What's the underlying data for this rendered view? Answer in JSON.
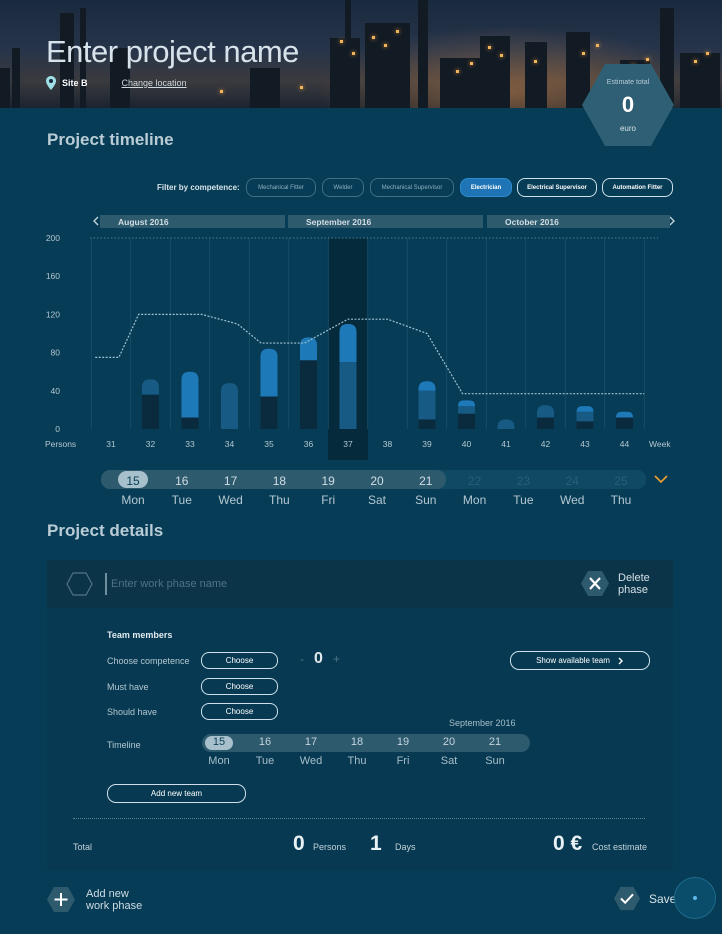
{
  "header": {
    "project_name_placeholder": "Enter project name",
    "site": "Site B",
    "change_location": "Change location",
    "estimate": {
      "label": "Estimate total",
      "value": "0",
      "unit": "euro"
    }
  },
  "timeline": {
    "section_title": "Project timeline",
    "filter_label": "Filter by competence:",
    "filters": [
      {
        "label": "Mechanical Fitter",
        "state": "inactive"
      },
      {
        "label": "Welder",
        "state": "inactive"
      },
      {
        "label": "Mechanical Supervisor",
        "state": "inactive"
      },
      {
        "label": "Electrician",
        "state": "active"
      },
      {
        "label": "Electrical Supervisor",
        "state": "selected"
      },
      {
        "label": "Automation Fitter",
        "state": "selected"
      }
    ],
    "months": [
      "August 2016",
      "September 2016",
      "October 2016"
    ],
    "prev_arrow": "‹",
    "next_arrow": "›"
  },
  "chart_data": {
    "type": "bar",
    "stacked": true,
    "categories": [
      "31",
      "32",
      "33",
      "34",
      "35",
      "36",
      "37",
      "38",
      "39",
      "40",
      "41",
      "42",
      "43",
      "44"
    ],
    "series": [
      {
        "color": "#0a2a3e",
        "values": [
          0,
          36,
          12,
          0,
          34,
          72,
          0,
          0,
          10,
          16,
          0,
          12,
          8,
          12
        ]
      },
      {
        "color": "#175a84",
        "values": [
          0,
          16,
          0,
          48,
          0,
          0,
          70,
          0,
          30,
          8,
          10,
          13,
          10,
          0
        ]
      },
      {
        "color": "#1e79b8",
        "values": [
          0,
          0,
          48,
          0,
          50,
          24,
          40,
          0,
          10,
          6,
          0,
          0,
          6,
          6
        ]
      }
    ],
    "capacity_line": {
      "x": [
        30.6,
        31.2,
        31.7,
        33.0,
        33.3,
        34.2,
        34.8,
        35.4,
        35.9,
        37.0,
        37.5,
        38.0,
        39.0,
        39.9,
        44.5
      ],
      "y": [
        75,
        75,
        120,
        120,
        120,
        110,
        90,
        90,
        90,
        115,
        115,
        115,
        100,
        37,
        37
      ]
    },
    "highlight_category": "37",
    "ylim": [
      0,
      200
    ],
    "yticks": [
      0,
      40,
      80,
      120,
      160,
      200
    ],
    "ylabel": "Persons",
    "xlabel": "Week",
    "grid": true
  },
  "day_strip": {
    "numbers": [
      "15",
      "16",
      "17",
      "18",
      "19",
      "20",
      "21",
      "22",
      "23",
      "24",
      "25"
    ],
    "names": [
      "Mon",
      "Tue",
      "Wed",
      "Thu",
      "Fri",
      "Sat",
      "Sun",
      "Mon",
      "Tue",
      "Wed",
      "Thu"
    ]
  },
  "details": {
    "section_title": "Project details",
    "phase_name_placeholder": "Enter work phase name",
    "delete_label": "Delete phase",
    "team_members_title": "Team members",
    "choose_competence_label": "Choose competence",
    "must_have_label": "Must have",
    "should_have_label": "Should have",
    "timeline_label": "Timeline",
    "choose_label": "Choose",
    "stepper": {
      "minus": "-",
      "value": "0",
      "plus": "+"
    },
    "show_team_label": "Show available team",
    "month_label": "September 2016",
    "tl_numbers": [
      "15",
      "16",
      "17",
      "18",
      "19",
      "20",
      "21"
    ],
    "tl_days": [
      "Mon",
      "Tue",
      "Wed",
      "Thu",
      "Fri",
      "Sat",
      "Sun"
    ],
    "add_team_label": "Add new team",
    "totals": {
      "label": "Total",
      "persons_value": "0",
      "persons_label": "Persons",
      "days_value": "1",
      "days_label": "Days",
      "cost_value": "0 €",
      "cost_label": "Cost estimate"
    }
  },
  "footer": {
    "add_phase_label": "Add new work phase",
    "save_label": "Save"
  },
  "colors": {
    "background": "#063c56",
    "accent": "#1e74b4",
    "highlight": "#f0a030"
  }
}
